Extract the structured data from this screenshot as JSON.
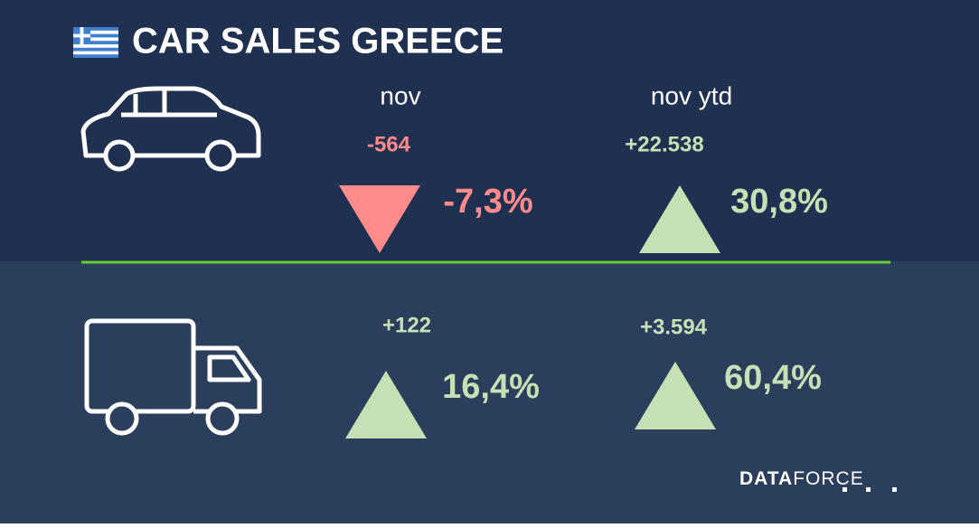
{
  "header": {
    "title": "CAR SALES GREECE"
  },
  "columns": [
    "nov",
    "nov ytd"
  ],
  "rows": [
    {
      "cells": [
        {
          "change": "-564",
          "percent": "-7,3%",
          "trend": "down",
          "color": "#ff8b8b"
        },
        {
          "change": "+22.538",
          "percent": "30,8%",
          "trend": "up",
          "color": "#c5e0b4"
        }
      ]
    },
    {
      "cells": [
        {
          "change": "+122",
          "percent": "16,4%",
          "trend": "up",
          "color": "#c5e0b4"
        },
        {
          "change": "+3.594",
          "percent": "60,4%",
          "trend": "up",
          "color": "#c5e0b4"
        }
      ]
    }
  ],
  "footer": {
    "brand_bold": "DATA",
    "brand_light": "FORCE"
  }
}
